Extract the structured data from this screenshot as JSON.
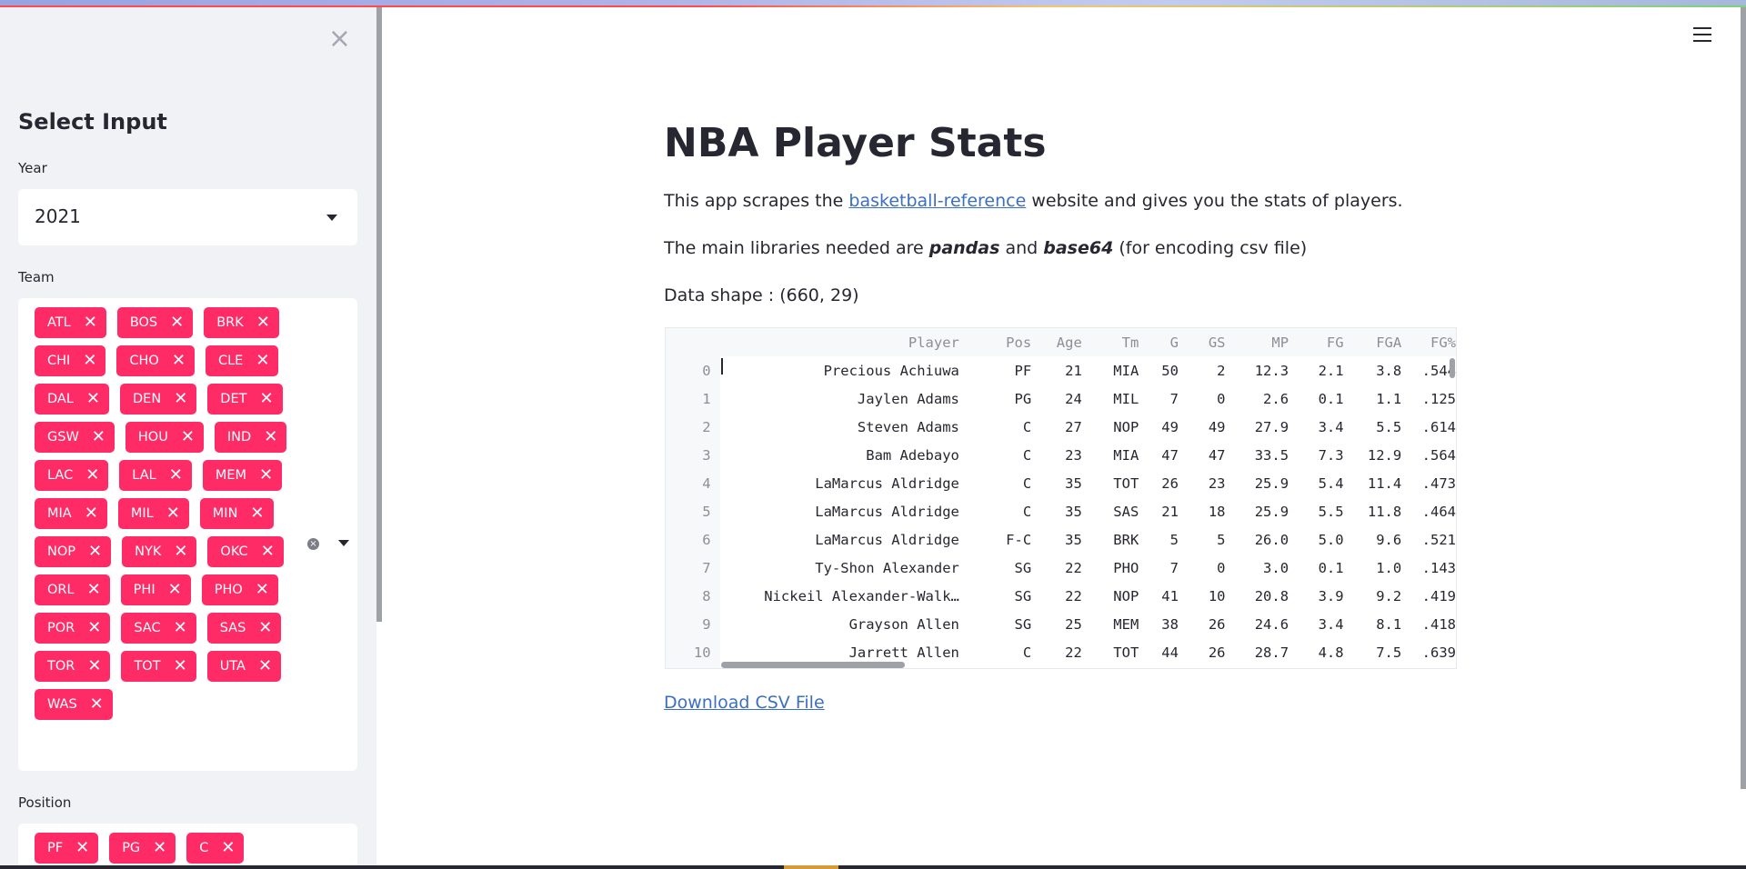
{
  "sidebar": {
    "close_label": "×",
    "title": "Select Input",
    "year_label": "Year",
    "year_value": "2021",
    "team_label": "Team",
    "teams": [
      "ATL",
      "BOS",
      "BRK",
      "CHI",
      "CHO",
      "CLE",
      "DAL",
      "DEN",
      "DET",
      "GSW",
      "HOU",
      "IND",
      "LAC",
      "LAL",
      "MEM",
      "MIA",
      "MIL",
      "MIN",
      "NOP",
      "NYK",
      "OKC",
      "ORL",
      "PHI",
      "PHO",
      "POR",
      "SAC",
      "SAS",
      "TOR",
      "TOT",
      "UTA",
      "WAS"
    ],
    "position_label": "Position",
    "positions": [
      "PF",
      "PG",
      "C"
    ],
    "tag_remove_glyph": "✕",
    "clear_glyph": "×"
  },
  "main": {
    "title": "NBA Player Stats",
    "intro_prefix": "This app scrapes the ",
    "intro_link": "basketball-reference",
    "intro_suffix": " website and gives you the stats of players.",
    "libs_prefix": "The main libraries needed are ",
    "libs_lib1": "pandas",
    "libs_and": " and ",
    "libs_lib2": "base64",
    "libs_suffix": " (for encoding csv file)",
    "shape_text": "Data shape : (660, 29)",
    "download_label": "Download CSV File"
  },
  "table": {
    "columns": [
      "Player",
      "Pos",
      "Age",
      "Tm",
      "G",
      "GS",
      "MP",
      "FG",
      "FGA",
      "FG%"
    ],
    "rows": [
      {
        "idx": "0",
        "cells": [
          "Precious Achiuwa",
          "PF",
          "21",
          "MIA",
          "50",
          "2",
          "12.3",
          "2.1",
          "3.8",
          ".544"
        ]
      },
      {
        "idx": "1",
        "cells": [
          "Jaylen Adams",
          "PG",
          "24",
          "MIL",
          "7",
          "0",
          "2.6",
          "0.1",
          "1.1",
          ".125"
        ]
      },
      {
        "idx": "2",
        "cells": [
          "Steven Adams",
          "C",
          "27",
          "NOP",
          "49",
          "49",
          "27.9",
          "3.4",
          "5.5",
          ".614"
        ]
      },
      {
        "idx": "3",
        "cells": [
          "Bam Adebayo",
          "C",
          "23",
          "MIA",
          "47",
          "47",
          "33.5",
          "7.3",
          "12.9",
          ".564"
        ]
      },
      {
        "idx": "4",
        "cells": [
          "LaMarcus Aldridge",
          "C",
          "35",
          "TOT",
          "26",
          "23",
          "25.9",
          "5.4",
          "11.4",
          ".473"
        ]
      },
      {
        "idx": "5",
        "cells": [
          "LaMarcus Aldridge",
          "C",
          "35",
          "SAS",
          "21",
          "18",
          "25.9",
          "5.5",
          "11.8",
          ".464"
        ]
      },
      {
        "idx": "6",
        "cells": [
          "LaMarcus Aldridge",
          "F-C",
          "35",
          "BRK",
          "5",
          "5",
          "26.0",
          "5.0",
          "9.6",
          ".521"
        ]
      },
      {
        "idx": "7",
        "cells": [
          "Ty-Shon Alexander",
          "SG",
          "22",
          "PHO",
          "7",
          "0",
          "3.0",
          "0.1",
          "1.0",
          ".143"
        ]
      },
      {
        "idx": "8",
        "cells": [
          "Nickeil Alexander-Walk…",
          "SG",
          "22",
          "NOP",
          "41",
          "10",
          "20.8",
          "3.9",
          "9.2",
          ".419"
        ]
      },
      {
        "idx": "9",
        "cells": [
          "Grayson Allen",
          "SG",
          "25",
          "MEM",
          "38",
          "26",
          "24.6",
          "3.4",
          "8.1",
          ".418"
        ]
      },
      {
        "idx": "10",
        "cells": [
          "Jarrett Allen",
          "C",
          "22",
          "TOT",
          "44",
          "26",
          "28.7",
          "4.8",
          "7.5",
          ".639"
        ]
      }
    ]
  }
}
